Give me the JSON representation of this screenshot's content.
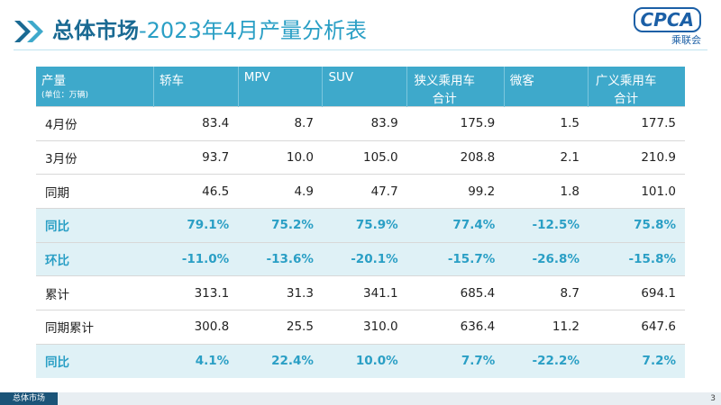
{
  "header": {
    "title_main": "总体市场",
    "title_sub": "-2023年4月产量分析表",
    "logo": "CPCA",
    "logo_sub": "乘联会"
  },
  "table": {
    "corner": "产量",
    "unit": "(单位：万辆)",
    "columns": [
      "轿车",
      "MPV",
      "SUV",
      "狭义乘用车合计",
      "微客",
      "广义乘用车合计"
    ],
    "rows": [
      {
        "label": "4月份",
        "highlight": false,
        "cells": [
          "83.4",
          "8.7",
          "83.9",
          "175.9",
          "1.5",
          "177.5"
        ]
      },
      {
        "label": "3月份",
        "highlight": false,
        "cells": [
          "93.7",
          "10.0",
          "105.0",
          "208.8",
          "2.1",
          "210.9"
        ]
      },
      {
        "label": "同期",
        "highlight": false,
        "cells": [
          "46.5",
          "4.9",
          "47.7",
          "99.2",
          "1.8",
          "101.0"
        ]
      },
      {
        "label": "同比",
        "highlight": true,
        "cells": [
          "79.1%",
          "75.2%",
          "75.9%",
          "77.4%",
          "-12.5%",
          "75.8%"
        ]
      },
      {
        "label": "环比",
        "highlight": true,
        "cells": [
          "-11.0%",
          "-13.6%",
          "-20.1%",
          "-15.7%",
          "-26.8%",
          "-15.8%"
        ]
      },
      {
        "label": "累计",
        "highlight": false,
        "cells": [
          "313.1",
          "31.3",
          "341.1",
          "685.4",
          "8.7",
          "694.1"
        ]
      },
      {
        "label": "同期累计",
        "highlight": false,
        "cells": [
          "300.8",
          "25.5",
          "310.0",
          "636.4",
          "11.2",
          "647.6"
        ]
      },
      {
        "label": "同比",
        "highlight": true,
        "cells": [
          "4.1%",
          "22.4%",
          "10.0%",
          "7.7%",
          "-22.2%",
          "7.2%"
        ]
      }
    ]
  },
  "footer": {
    "tab": "总体市场",
    "page": "3"
  }
}
